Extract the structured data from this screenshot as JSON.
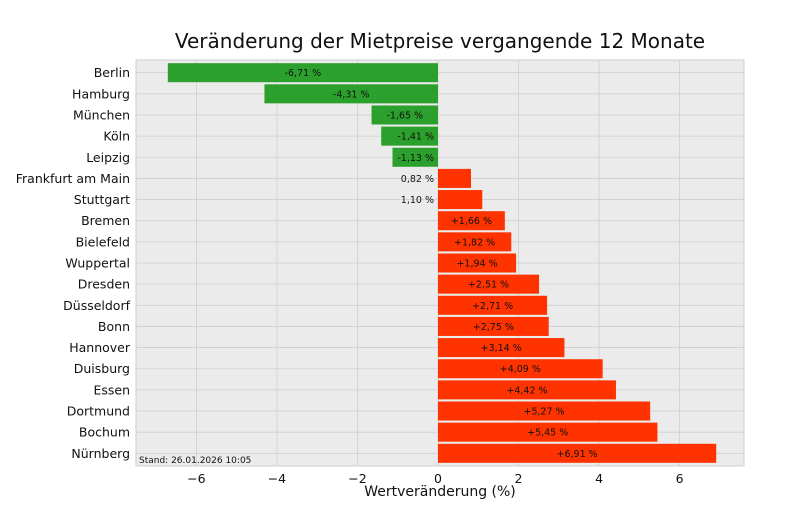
{
  "chart_data": {
    "type": "bar",
    "orientation": "horizontal",
    "title": "Veränderung der Mietpreise vergangende 12 Monate",
    "xlabel": "Wertveränderung (%)",
    "ylabel": "",
    "xlim": [
      -7.5,
      7.6
    ],
    "xticks": [
      -6,
      -4,
      -2,
      0,
      2,
      4,
      6
    ],
    "xtick_labels": [
      "−6",
      "−4",
      "−2",
      "0",
      "2",
      "4",
      "6"
    ],
    "grid": true,
    "background": "#ebebeb",
    "colors": {
      "negative": "#2ca02c",
      "positive": "#ff3300"
    },
    "footnote": "Stand: 26.01.2026 10:05",
    "categories": [
      "Berlin",
      "Hamburg",
      "München",
      "Köln",
      "Leipzig",
      "Frankfurt am Main",
      "Stuttgart",
      "Bremen",
      "Bielefeld",
      "Wuppertal",
      "Dresden",
      "Düsseldorf",
      "Bonn",
      "Hannover",
      "Duisburg",
      "Essen",
      "Dortmund",
      "Bochum",
      "Nürnberg"
    ],
    "values": [
      -6.71,
      -4.31,
      -1.65,
      -1.41,
      -1.13,
      0.82,
      1.1,
      1.66,
      1.82,
      1.94,
      2.51,
      2.71,
      2.75,
      3.14,
      4.09,
      4.42,
      5.27,
      5.45,
      6.91
    ],
    "data_labels": [
      "-6,71 %",
      "-4,31 %",
      "-1,65 %",
      "-1,41 %",
      "-1,13 %",
      "0,82 %",
      "1,10 %",
      "+1,66 %",
      "+1,82 %",
      "+1,94 %",
      "+2,51 %",
      "+2,71 %",
      "+2,75 %",
      "+3,14 %",
      "+4,09 %",
      "+4,42 %",
      "+5,27 %",
      "+5,45 %",
      "+6,91 %"
    ]
  }
}
